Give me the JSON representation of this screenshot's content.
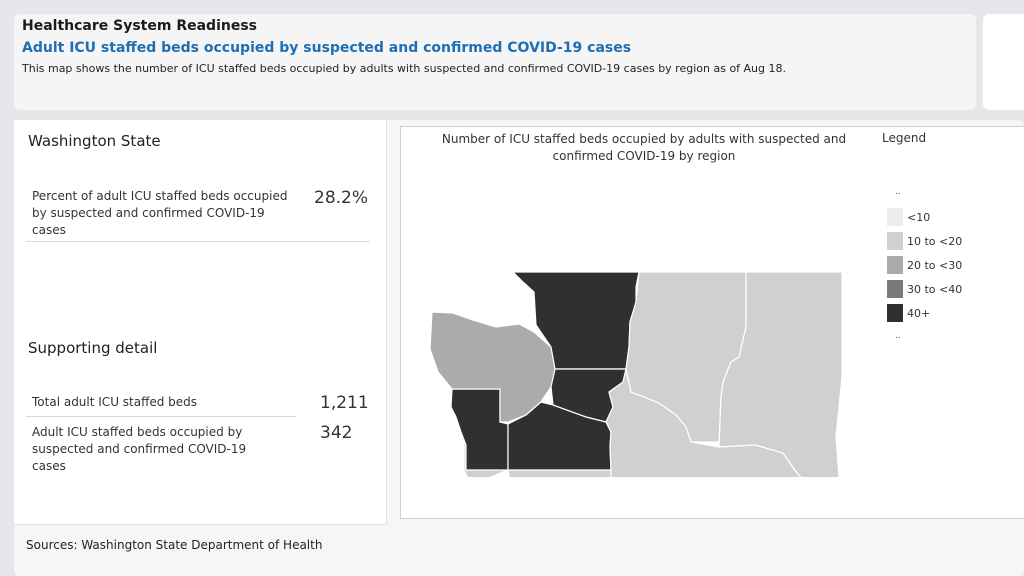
{
  "header": {
    "title": "Healthcare System Readiness",
    "subtitle": "Adult ICU staffed beds occupied by suspected and confirmed COVID-19 cases",
    "description": "This map shows the number of ICU staffed beds occupied by adults with suspected and confirmed COVID-19 cases by region as of Aug 18."
  },
  "left_panel": {
    "state_title": "Washington State",
    "percent_metric": {
      "label": "Percent of adult ICU staffed beds occupied by suspected and confirmed COVID-19 cases",
      "value": "28.2%"
    },
    "supporting_title": "Supporting detail",
    "details": [
      {
        "label": "Total adult ICU staffed beds",
        "value": "1,211"
      },
      {
        "label": "Adult ICU staffed beds occupied by suspected and confirmed COVID-19 cases",
        "value": "342"
      }
    ]
  },
  "map": {
    "title": "Number of ICU staffed beds occupied by adults with suspected and confirmed COVID-19 by region",
    "legend_title": "Legend",
    "legend_items": [
      {
        "label": "<10",
        "color": "#ececec"
      },
      {
        "label": "10 to <20",
        "color": "#d0d0d0"
      },
      {
        "label": "20 to <30",
        "color": "#aaaaaa"
      },
      {
        "label": "30 to <40",
        "color": "#7a7a7a"
      },
      {
        "label": "40+",
        "color": "#303030"
      }
    ],
    "legend_dots": "..",
    "region_colors": {
      "dark": "#303030",
      "mid": "#ababab",
      "light": "#d0d0d0",
      "border": "#ffffff"
    }
  },
  "footer": {
    "sources": "Sources: Washington State Department of Health"
  }
}
